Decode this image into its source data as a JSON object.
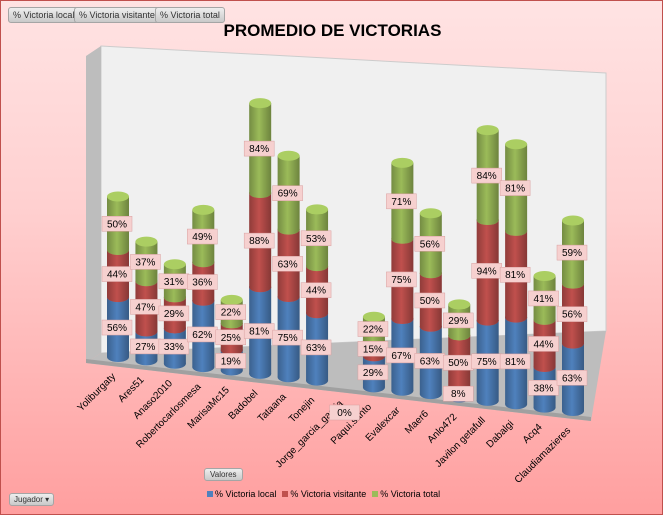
{
  "field_buttons": [
    "% Victoria local",
    "% Victoria visitante",
    "% Victoria total"
  ],
  "valores_button": "Valores",
  "jugador_button": "Jugador",
  "chart_data": {
    "type": "bar",
    "subtype": "3d-stacked-cylinder",
    "title": "PROMEDIO DE VICTORIAS",
    "categories": [
      "Yoliburgaty",
      "Ares51",
      "Anaso2010",
      "Robertocarlosmesa",
      "MarisaMc15",
      "Badobel",
      "Tataana",
      "Tonejin",
      "Jorge_garcia_garcia",
      "Paqui.santo",
      "Evalexcar",
      "Maer6",
      "Anlo472",
      "Javilon getafull",
      "Dabalgi",
      "Acq4",
      "Claudiamazieres"
    ],
    "series": [
      {
        "name": "% Victoria local",
        "color": "#4f81bd",
        "values": [
          56,
          27,
          33,
          62,
          19,
          81,
          75,
          63,
          0,
          29,
          67,
          63,
          8,
          75,
          81,
          38,
          63
        ]
      },
      {
        "name": "% Victoria visitante",
        "color": "#c0504d",
        "values": [
          44,
          47,
          29,
          36,
          25,
          88,
          63,
          44,
          0,
          15,
          75,
          50,
          50,
          94,
          81,
          44,
          56
        ]
      },
      {
        "name": "% Victoria total",
        "color": "#9bbb59",
        "values": [
          50,
          37,
          31,
          49,
          22,
          84,
          69,
          53,
          0,
          22,
          71,
          56,
          29,
          84,
          81,
          41,
          59
        ]
      }
    ],
    "legend": "bottom"
  }
}
